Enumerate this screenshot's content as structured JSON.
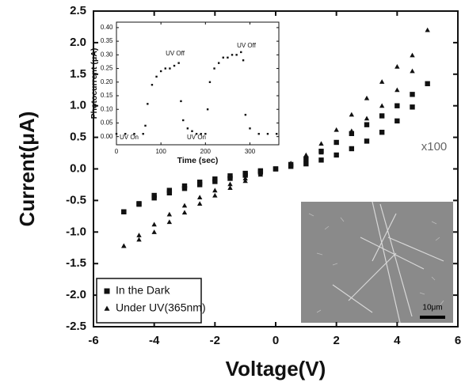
{
  "chart_data": [
    {
      "type": "scatter",
      "x_label": "Voltage(V)",
      "y_label": "Current(μA)",
      "x": [
        -5,
        -4.5,
        -4,
        -3.5,
        -3,
        -2.5,
        -2,
        -1.5,
        -1,
        -0.5,
        0,
        0.5,
        1,
        1.5,
        2,
        2.5,
        3,
        3.5,
        4,
        4.5,
        5,
        4.5,
        4,
        3.5,
        3,
        2.5,
        2,
        1.5,
        1,
        0.5,
        0,
        -0.5,
        -1,
        -1.5,
        -2,
        -2.5,
        -3,
        -3.5,
        -4,
        -4.5,
        -5
      ],
      "series": [
        {
          "name": "In the Dark",
          "color": "#111111",
          "marker": "square",
          "values": [
            -0.68,
            -0.55,
            -0.42,
            -0.34,
            -0.27,
            -0.21,
            -0.16,
            -0.11,
            -0.07,
            -0.03,
            0,
            0.04,
            0.08,
            0.14,
            0.22,
            0.32,
            0.44,
            0.58,
            0.76,
            0.98,
            1.35,
            1.18,
            1.0,
            0.84,
            0.7,
            0.56,
            0.42,
            0.28,
            0.16,
            0.07,
            0,
            -0.05,
            -0.1,
            -0.15,
            -0.2,
            -0.25,
            -0.31,
            -0.38,
            -0.46,
            -0.56,
            -0.68
          ]
        },
        {
          "name": "Under UV(365nm)",
          "color": "#111111",
          "marker": "triangle",
          "values": [
            -1.22,
            -1.05,
            -0.88,
            -0.72,
            -0.58,
            -0.45,
            -0.34,
            -0.24,
            -0.15,
            -0.07,
            0,
            0.06,
            0.14,
            0.26,
            0.42,
            0.6,
            0.8,
            1.0,
            1.25,
            1.55,
            2.2,
            1.8,
            1.62,
            1.38,
            1.12,
            0.86,
            0.62,
            0.4,
            0.22,
            0.09,
            0,
            -0.09,
            -0.19,
            -0.3,
            -0.42,
            -0.55,
            -0.69,
            -0.84,
            -1.0,
            -1.12,
            -1.22
          ]
        }
      ],
      "xlim": [
        -6,
        6
      ],
      "xticks": [
        -6,
        -4,
        -2,
        0,
        2,
        4,
        6
      ],
      "ylim": [
        -2.5,
        2.5
      ],
      "yticks": [
        -2.5,
        {
          "value": -2,
          "label": "-2.0"
        },
        -1.5,
        {
          "value": -1,
          "label": "-1.0"
        },
        -0.5,
        {
          "value": 0,
          "label": "0.0"
        },
        0.5,
        {
          "value": 1,
          "label": "1.0"
        },
        1.5,
        {
          "value": 2,
          "label": "2.0"
        },
        2.5
      ],
      "legend": "lower left",
      "annotations": [
        "x100",
        "10μm"
      ]
    },
    {
      "type": "scatter",
      "x_label": "Time (sec)",
      "y_label": "Photocurrent (μA)",
      "x": [
        0,
        20,
        40,
        60,
        65,
        70,
        80,
        90,
        100,
        110,
        120,
        130,
        140,
        145,
        150,
        160,
        170,
        180,
        190,
        200,
        205,
        210,
        220,
        230,
        240,
        250,
        260,
        270,
        280,
        285,
        290,
        300,
        320,
        340,
        360
      ],
      "series": [
        {
          "color": "#111111",
          "values": [
            0.01,
            0.01,
            0.01,
            0.01,
            0.04,
            0.12,
            0.19,
            0.22,
            0.24,
            0.25,
            0.25,
            0.26,
            0.27,
            0.13,
            0.06,
            0.03,
            0.02,
            0.01,
            0.01,
            0.01,
            0.1,
            0.2,
            0.25,
            0.27,
            0.29,
            0.29,
            0.3,
            0.3,
            0.31,
            0.28,
            0.08,
            0.03,
            0.01,
            0.01,
            0.01
          ]
        }
      ],
      "xlim": [
        0,
        365
      ],
      "xticks": [
        0,
        100,
        200,
        300
      ],
      "ylim": [
        -0.03,
        0.42
      ],
      "yticks": [
        {
          "value": 0,
          "label": "0.00"
        },
        {
          "value": 0.05,
          "label": "0.05"
        },
        {
          "value": 0.1,
          "label": "0.10"
        },
        {
          "value": 0.15,
          "label": "0.15"
        },
        {
          "value": 0.2,
          "label": "0.20"
        },
        {
          "value": 0.25,
          "label": "0.25"
        },
        {
          "value": 0.3,
          "label": "0.30"
        },
        {
          "value": 0.35,
          "label": "0.35"
        },
        {
          "value": 0.4,
          "label": "0.40"
        }
      ],
      "annotations": [
        "UV On",
        "UV Off",
        "UV On",
        "UV Off"
      ]
    }
  ]
}
